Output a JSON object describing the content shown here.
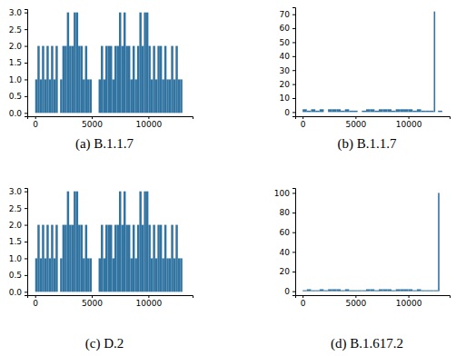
{
  "chart_data": [
    {
      "type": "bar",
      "title": "(a) B.1.1.7",
      "color": "#3274a1",
      "x": [
        0,
        200,
        400,
        600,
        800,
        1000,
        1200,
        1400,
        1600,
        1800,
        2000,
        2200,
        2400,
        2600,
        2800,
        3000,
        3200,
        3400,
        3600,
        3800,
        4000,
        4200,
        4400,
        4600,
        4800,
        5000,
        5200,
        5400,
        5600,
        5800,
        6000,
        6200,
        6400,
        6600,
        6800,
        7000,
        7200,
        7400,
        7600,
        7800,
        8000,
        8200,
        8400,
        8600,
        8800,
        9000,
        9200,
        9400,
        9600,
        9800,
        10000,
        10200,
        10400,
        10600,
        10800,
        11000,
        11200,
        11400,
        11600,
        11800,
        12000,
        12200,
        12400,
        12600,
        12800,
        13000,
        13200
      ],
      "values": [
        1,
        2,
        1,
        2,
        1,
        2,
        1,
        2,
        1,
        2,
        0,
        1,
        2,
        2,
        3,
        2,
        2,
        3,
        3,
        2,
        2,
        1,
        2,
        1,
        1,
        0,
        0,
        0,
        1,
        2,
        1,
        2,
        2,
        2,
        1,
        2,
        2,
        3,
        2,
        3,
        2,
        2,
        1,
        2,
        1,
        2,
        3,
        2,
        3,
        3,
        2,
        1,
        2,
        1,
        2,
        2,
        1,
        2,
        1,
        1,
        2,
        1,
        2,
        1,
        1,
        0,
        0
      ],
      "xlim": [
        -700,
        13900
      ],
      "xticks": [
        0,
        5000,
        10000
      ],
      "ylim": [
        -0.1,
        3.1
      ],
      "yticks": [
        {
          "value": 0,
          "label": "0.0"
        },
        {
          "value": 0.5,
          "label": "0.5"
        },
        {
          "value": 1,
          "label": "1.0"
        },
        {
          "value": 1.5,
          "label": "1.5"
        },
        {
          "value": 2,
          "label": "2.0"
        },
        {
          "value": 2.5,
          "label": "2.5"
        },
        {
          "value": 3,
          "label": "3.0"
        }
      ]
    },
    {
      "type": "bar",
      "title": "(b) B.1.1.7",
      "color": "#3274a1",
      "x": [
        0,
        400,
        800,
        1200,
        1600,
        2000,
        2400,
        2800,
        3200,
        3600,
        4000,
        4400,
        4800,
        5200,
        5600,
        6000,
        6400,
        6800,
        7200,
        7600,
        8000,
        8400,
        8800,
        9200,
        9600,
        10000,
        10400,
        10800,
        11200,
        11600,
        12000,
        12400,
        12800,
        13200
      ],
      "values": [
        2,
        1,
        2,
        1,
        2,
        0,
        2,
        2,
        2,
        1,
        2,
        1,
        1,
        0,
        1,
        2,
        2,
        1,
        2,
        2,
        2,
        1,
        2,
        2,
        2,
        2,
        1,
        2,
        1,
        1,
        1,
        72,
        1,
        0
      ],
      "xlim": [
        -700,
        13900
      ],
      "xticks": [
        0,
        5000,
        10000
      ],
      "ylim": [
        -3,
        75
      ],
      "yticks": [
        0,
        10,
        20,
        30,
        40,
        50,
        60,
        70
      ]
    },
    {
      "type": "bar",
      "title": "(c) D.2",
      "color": "#3274a1",
      "x": [
        0,
        200,
        400,
        600,
        800,
        1000,
        1200,
        1400,
        1600,
        1800,
        2000,
        2200,
        2400,
        2600,
        2800,
        3000,
        3200,
        3400,
        3600,
        3800,
        4000,
        4200,
        4400,
        4600,
        4800,
        5000,
        5200,
        5400,
        5600,
        5800,
        6000,
        6200,
        6400,
        6600,
        6800,
        7000,
        7200,
        7400,
        7600,
        7800,
        8000,
        8200,
        8400,
        8600,
        8800,
        9000,
        9200,
        9400,
        9600,
        9800,
        10000,
        10200,
        10400,
        10600,
        10800,
        11000,
        11200,
        11400,
        11600,
        11800,
        12000,
        12200,
        12400,
        12600,
        12800,
        13000,
        13200
      ],
      "values": [
        1,
        2,
        1,
        2,
        1,
        2,
        1,
        2,
        1,
        2,
        0,
        1,
        2,
        2,
        3,
        2,
        2,
        3,
        3,
        2,
        2,
        1,
        2,
        1,
        1,
        0,
        0,
        0,
        1,
        2,
        1,
        2,
        2,
        2,
        1,
        2,
        2,
        3,
        2,
        3,
        2,
        2,
        1,
        2,
        1,
        2,
        3,
        2,
        3,
        3,
        2,
        1,
        2,
        1,
        2,
        2,
        1,
        2,
        1,
        1,
        2,
        1,
        2,
        1,
        1,
        0,
        0
      ],
      "xlim": [
        -700,
        13900
      ],
      "xticks": [
        0,
        5000,
        10000
      ],
      "ylim": [
        -0.1,
        3.1
      ],
      "yticks": [
        {
          "value": 0,
          "label": "0.0"
        },
        {
          "value": 0.5,
          "label": "0.5"
        },
        {
          "value": 1,
          "label": "1.0"
        },
        {
          "value": 1.5,
          "label": "1.5"
        },
        {
          "value": 2,
          "label": "2.0"
        },
        {
          "value": 2.5,
          "label": "2.5"
        },
        {
          "value": 3,
          "label": "3.0"
        }
      ]
    },
    {
      "type": "bar",
      "title": "(d) B.1.617.2",
      "color": "#3274a1",
      "x": [
        0,
        400,
        800,
        1200,
        1600,
        2000,
        2400,
        2800,
        3200,
        3600,
        4000,
        4400,
        4800,
        5200,
        5600,
        6000,
        6400,
        6800,
        7200,
        7600,
        8000,
        8400,
        8800,
        9200,
        9600,
        10000,
        10400,
        10800,
        11200,
        11600,
        12000,
        12400,
        12800,
        13200
      ],
      "values": [
        1,
        2,
        1,
        1,
        2,
        1,
        2,
        2,
        2,
        1,
        2,
        1,
        1,
        1,
        1,
        2,
        2,
        1,
        2,
        2,
        2,
        1,
        2,
        2,
        2,
        2,
        1,
        2,
        1,
        1,
        1,
        1,
        100,
        0
      ],
      "xlim": [
        -700,
        13900
      ],
      "xticks": [
        0,
        5000,
        10000
      ],
      "ylim": [
        -4,
        105
      ],
      "yticks": [
        0,
        20,
        40,
        60,
        80,
        100
      ]
    }
  ]
}
